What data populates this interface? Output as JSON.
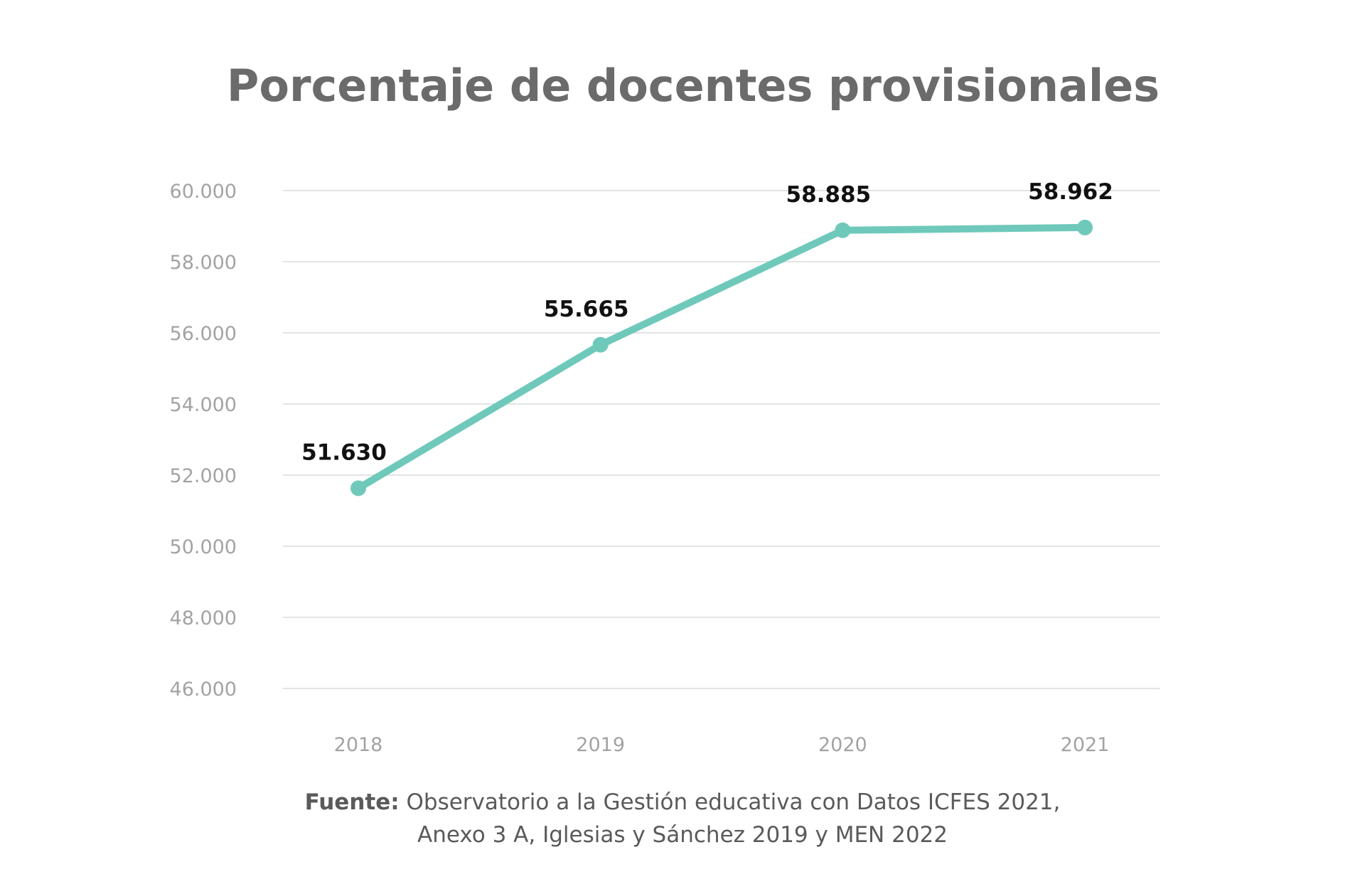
{
  "chart_data": {
    "type": "line",
    "title": "Porcentaje de docentes provisionales",
    "categories": [
      "2018",
      "2019",
      "2020",
      "2021"
    ],
    "series": [
      {
        "values": [
          51630,
          55665,
          58885,
          58962
        ],
        "labels": [
          "51.630",
          "55.665",
          "58.885",
          "58.962"
        ]
      }
    ],
    "ylim": [
      46000,
      60000
    ],
    "yticks": [
      46000,
      48000,
      50000,
      52000,
      54000,
      56000,
      58000,
      60000
    ],
    "ytick_labels": [
      "46.000",
      "48.000",
      "50.000",
      "52.000",
      "54.000",
      "56.000",
      "58.000",
      "60.000"
    ],
    "xlabel": "",
    "ylabel": "",
    "grid": true,
    "legend": "none",
    "colors": {
      "series": "#6fc9bb",
      "grid": "#dcdcdc",
      "title": "#6b6b6b",
      "tick_label": "#a3a3a3",
      "data_label": "#111111"
    }
  },
  "source": {
    "prefix": "Fuente:",
    "line1": " Observatorio a la Gestión educativa con Datos ICFES 2021,",
    "line2": "Anexo 3 A, Iglesias y Sánchez 2019 y MEN 2022"
  }
}
